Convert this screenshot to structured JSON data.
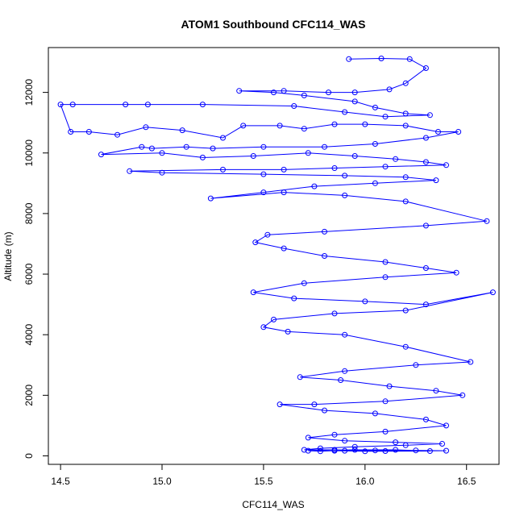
{
  "chart_data": {
    "type": "scatter",
    "title": "ATOM1 Southbound CFC114_WAS",
    "xlabel": "CFC114_WAS",
    "ylabel": "Altitude (m)",
    "xlim": [
      14.44,
      16.66
    ],
    "ylim": [
      -280,
      13480
    ],
    "x_ticks": [
      14.5,
      15.0,
      15.5,
      16.0,
      16.5
    ],
    "x_tick_labels": [
      "14.5",
      "15.0",
      "15.5",
      "16.0",
      "16.5"
    ],
    "y_ticks": [
      0,
      2000,
      4000,
      6000,
      8000,
      10000,
      12000
    ],
    "y_tick_labels": [
      "0",
      "2000",
      "4000",
      "6000",
      "8000",
      "10000",
      "12000"
    ],
    "series_color": "#0000ff",
    "marker": "open-circle",
    "connected": true,
    "series": [
      {
        "x": [
          15.92,
          16.08,
          16.22,
          16.3,
          16.2,
          16.12,
          15.95,
          15.82,
          15.6,
          15.38,
          15.55,
          15.7,
          15.95,
          16.05,
          16.2,
          16.32,
          16.1,
          15.9,
          15.65,
          15.2,
          14.93,
          14.82,
          14.56,
          14.5,
          14.55,
          14.64,
          14.78,
          14.92,
          15.1,
          15.3,
          15.4,
          15.58,
          15.7,
          15.85,
          16.0,
          16.2,
          16.36,
          16.46,
          16.3,
          16.05,
          15.8,
          15.5,
          15.25,
          15.12,
          14.95,
          14.9,
          14.7,
          15.0,
          15.2,
          15.45,
          15.72,
          15.95,
          16.15,
          16.3,
          16.4,
          16.1,
          15.85,
          15.6,
          15.3,
          14.84,
          15.0,
          15.5,
          15.9,
          16.2,
          16.35,
          16.05,
          15.75,
          15.5,
          15.24,
          15.6,
          15.9,
          16.2,
          16.6,
          16.3,
          15.8,
          15.52,
          15.46,
          15.6,
          15.8,
          16.1,
          16.3,
          16.45,
          16.1,
          15.7,
          15.45,
          15.65,
          16.0,
          16.3,
          16.63,
          16.2,
          15.85,
          15.55,
          15.5,
          15.62,
          15.9,
          16.2,
          16.52,
          16.25,
          15.9,
          15.68,
          15.88,
          16.12,
          16.35,
          16.48,
          16.1,
          15.75,
          15.58,
          15.8,
          16.05,
          16.3,
          16.4,
          16.1,
          15.85,
          15.72,
          15.9,
          16.15,
          16.38,
          16.2,
          15.95,
          15.78,
          15.7,
          15.85,
          16.05,
          16.25,
          16.4,
          16.1,
          15.9,
          15.72,
          15.78,
          15.95,
          16.15,
          16.32,
          16.0,
          15.85
        ],
        "y": [
          13100,
          13120,
          13100,
          12800,
          12300,
          12100,
          12000,
          12000,
          12050,
          12050,
          12000,
          11900,
          11700,
          11500,
          11300,
          11250,
          11200,
          11350,
          11550,
          11600,
          11600,
          11600,
          11600,
          11600,
          10700,
          10700,
          10600,
          10850,
          10750,
          10500,
          10900,
          10900,
          10800,
          10950,
          10950,
          10900,
          10700,
          10700,
          10500,
          10300,
          10200,
          10200,
          10150,
          10200,
          10150,
          10200,
          9950,
          10000,
          9850,
          9900,
          10000,
          9900,
          9800,
          9700,
          9600,
          9550,
          9500,
          9450,
          9450,
          9400,
          9350,
          9300,
          9250,
          9200,
          9100,
          9000,
          8900,
          8700,
          8500,
          8700,
          8600,
          8400,
          7750,
          7600,
          7400,
          7300,
          7050,
          6850,
          6600,
          6400,
          6200,
          6050,
          5900,
          5700,
          5400,
          5200,
          5100,
          5000,
          5400,
          4800,
          4700,
          4500,
          4250,
          4100,
          4000,
          3600,
          3100,
          3000,
          2800,
          2600,
          2500,
          2300,
          2150,
          2000,
          1800,
          1700,
          1700,
          1500,
          1400,
          1200,
          1000,
          800,
          700,
          600,
          500,
          450,
          400,
          350,
          300,
          250,
          200,
          200,
          180,
          180,
          170,
          160,
          170,
          170,
          150,
          200,
          200,
          160,
          150,
          170
        ]
      }
    ]
  }
}
